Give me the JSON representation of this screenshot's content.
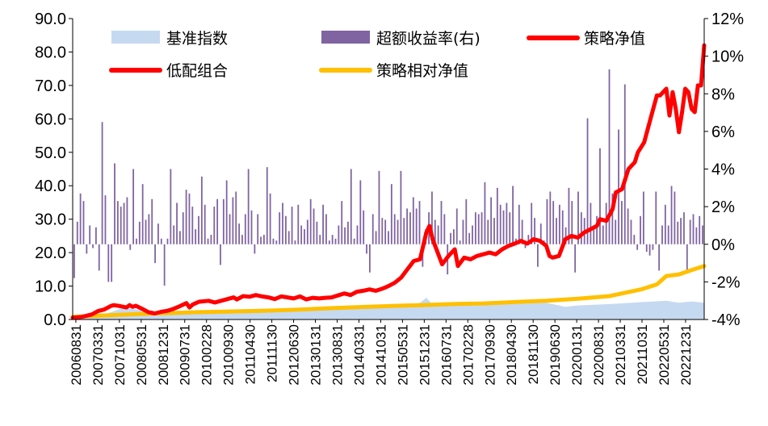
{
  "chart_data": {
    "type": "line",
    "legend": {
      "position": "top",
      "entries": [
        {
          "key": "benchmark",
          "label": "基准指数",
          "kind": "area",
          "color": "#c5d9f1"
        },
        {
          "key": "excess",
          "label": "超额收益率(右)",
          "kind": "bar",
          "color": "#8064a2"
        },
        {
          "key": "strategy",
          "label": "策略净值",
          "kind": "line",
          "color": "#ff0000"
        },
        {
          "key": "lowcombo",
          "label": "低配组合",
          "kind": "line",
          "color": "#ff0000"
        },
        {
          "key": "relative",
          "label": "策略相对净值",
          "kind": "line",
          "color": "#ffc000"
        }
      ]
    },
    "y_left": {
      "min": 0,
      "max": 90,
      "ticks": [
        "0.0",
        "10.0",
        "20.0",
        "30.0",
        "40.0",
        "50.0",
        "60.0",
        "70.0",
        "80.0",
        "90.0"
      ]
    },
    "y_right": {
      "min": -4,
      "max": 12,
      "ticks": [
        "-4%",
        "-2%",
        "0%",
        "2%",
        "4%",
        "6%",
        "8%",
        "10%",
        "12%"
      ]
    },
    "x_ticks": [
      "20060831",
      "20070331",
      "20071031",
      "20080531",
      "20081231",
      "20090731",
      "20100228",
      "20100930",
      "20110430",
      "20111130",
      "20120630",
      "20130131",
      "20130831",
      "20140331",
      "20141031",
      "20150531",
      "20151231",
      "20160731",
      "20170228",
      "20170930",
      "20180430",
      "20181130",
      "20190630",
      "20200131",
      "20200831",
      "20210331",
      "20211031",
      "20220531",
      "20221231"
    ],
    "x_range": [
      0,
      197
    ],
    "strategy_points": [
      [
        0,
        0.5
      ],
      [
        3,
        0.8
      ],
      [
        6,
        1.5
      ],
      [
        8,
        2.5
      ],
      [
        10,
        3.0
      ],
      [
        12,
        4.0
      ],
      [
        13,
        4.3
      ],
      [
        15,
        4.0
      ],
      [
        17,
        3.6
      ],
      [
        18,
        4.3
      ],
      [
        19,
        3.8
      ],
      [
        20,
        4.1
      ],
      [
        22,
        3.2
      ],
      [
        24,
        2.2
      ],
      [
        26,
        1.8
      ],
      [
        28,
        2.3
      ],
      [
        30,
        2.6
      ],
      [
        32,
        3.2
      ],
      [
        34,
        4.0
      ],
      [
        36,
        4.9
      ],
      [
        37,
        3.6
      ],
      [
        38,
        4.5
      ],
      [
        40,
        5.3
      ],
      [
        43,
        5.6
      ],
      [
        45,
        5.1
      ],
      [
        47,
        5.6
      ],
      [
        49,
        6.1
      ],
      [
        51,
        6.6
      ],
      [
        52,
        6.0
      ],
      [
        54,
        7.0
      ],
      [
        56,
        6.8
      ],
      [
        58,
        7.3
      ],
      [
        60,
        6.9
      ],
      [
        62,
        6.6
      ],
      [
        64,
        6.1
      ],
      [
        66,
        6.9
      ],
      [
        68,
        6.6
      ],
      [
        70,
        6.3
      ],
      [
        72,
        6.9
      ],
      [
        74,
        6.0
      ],
      [
        76,
        6.5
      ],
      [
        78,
        6.3
      ],
      [
        80,
        6.5
      ],
      [
        82,
        6.6
      ],
      [
        84,
        7.2
      ],
      [
        86,
        7.8
      ],
      [
        88,
        7.3
      ],
      [
        90,
        8.3
      ],
      [
        92,
        8.6
      ],
      [
        94,
        9.0
      ],
      [
        96,
        8.6
      ],
      [
        98,
        9.2
      ],
      [
        100,
        10.0
      ],
      [
        102,
        11.0
      ],
      [
        104,
        12.5
      ],
      [
        106,
        15.0
      ],
      [
        108,
        17.5
      ],
      [
        110,
        18.0
      ],
      [
        112,
        26.0
      ],
      [
        113,
        28.0
      ],
      [
        114,
        24.0
      ],
      [
        116,
        19.0
      ],
      [
        117,
        16.5
      ],
      [
        119,
        19.0
      ],
      [
        121,
        21.0
      ],
      [
        122,
        16.0
      ],
      [
        124,
        18.5
      ],
      [
        126,
        18.0
      ],
      [
        128,
        19.0
      ],
      [
        130,
        19.5
      ],
      [
        132,
        20.0
      ],
      [
        134,
        19.5
      ],
      [
        136,
        21.0
      ],
      [
        138,
        22.0
      ],
      [
        140,
        22.7
      ],
      [
        142,
        23.5
      ],
      [
        144,
        22.7
      ],
      [
        146,
        24.0
      ],
      [
        148,
        23.5
      ],
      [
        150,
        22.0
      ],
      [
        151,
        19.0
      ],
      [
        152,
        18.5
      ],
      [
        154,
        19.0
      ],
      [
        156,
        24.0
      ],
      [
        158,
        25.0
      ],
      [
        160,
        24.5
      ],
      [
        162,
        26.0
      ],
      [
        164,
        27.0
      ],
      [
        166,
        28.0
      ],
      [
        167,
        30.0
      ],
      [
        169,
        29.5
      ],
      [
        171,
        33.0
      ],
      [
        172,
        38.0
      ],
      [
        174,
        39.0
      ],
      [
        176,
        45.0
      ],
      [
        178,
        47.0
      ],
      [
        179,
        50.0
      ],
      [
        181,
        53.0
      ],
      [
        183,
        60.0
      ],
      [
        185,
        67.0
      ],
      [
        186,
        67.0
      ],
      [
        188,
        69.0
      ],
      [
        189,
        61.0
      ],
      [
        190,
        68.0
      ],
      [
        191,
        63.0
      ],
      [
        192,
        56.0
      ],
      [
        193,
        62.0
      ],
      [
        194,
        69.0
      ],
      [
        195,
        68.0
      ],
      [
        196,
        63.0
      ],
      [
        197,
        62.0
      ],
      [
        198,
        70.0
      ],
      [
        199,
        70.0
      ],
      [
        200,
        82.0
      ]
    ],
    "relative_points": [
      [
        0,
        0.8
      ],
      [
        10,
        1.2
      ],
      [
        20,
        1.6
      ],
      [
        30,
        1.9
      ],
      [
        40,
        2.2
      ],
      [
        50,
        2.4
      ],
      [
        60,
        2.6
      ],
      [
        70,
        2.9
      ],
      [
        80,
        3.3
      ],
      [
        90,
        3.7
      ],
      [
        100,
        4.0
      ],
      [
        110,
        4.3
      ],
      [
        120,
        4.6
      ],
      [
        130,
        4.8
      ],
      [
        140,
        5.2
      ],
      [
        150,
        5.6
      ],
      [
        160,
        6.2
      ],
      [
        170,
        7.0
      ],
      [
        175,
        8.0
      ],
      [
        180,
        9.0
      ],
      [
        185,
        10.5
      ],
      [
        188,
        13.0
      ],
      [
        192,
        13.5
      ],
      [
        196,
        14.8
      ],
      [
        200,
        16.0
      ]
    ],
    "benchmark_points": [
      [
        0,
        0.8
      ],
      [
        10,
        1.5
      ],
      [
        16,
        3.5
      ],
      [
        22,
        2.8
      ],
      [
        30,
        1.8
      ],
      [
        40,
        2.6
      ],
      [
        50,
        3.0
      ],
      [
        60,
        3.2
      ],
      [
        70,
        3.0
      ],
      [
        80,
        3.0
      ],
      [
        90,
        3.3
      ],
      [
        100,
        3.6
      ],
      [
        106,
        4.2
      ],
      [
        110,
        5.0
      ],
      [
        112,
        6.5
      ],
      [
        114,
        4.5
      ],
      [
        120,
        4.2
      ],
      [
        130,
        4.3
      ],
      [
        140,
        4.6
      ],
      [
        150,
        5.0
      ],
      [
        156,
        3.8
      ],
      [
        160,
        4.2
      ],
      [
        170,
        4.6
      ],
      [
        180,
        5.2
      ],
      [
        188,
        5.6
      ],
      [
        192,
        5.0
      ],
      [
        196,
        5.4
      ],
      [
        200,
        5.0
      ]
    ],
    "excess_values": [
      -1.8,
      1.2,
      2.7,
      2.3,
      -0.5,
      1.0,
      -0.2,
      0.9,
      -1.4,
      6.5,
      2.6,
      -2.0,
      -2.0,
      4.3,
      2.3,
      2.0,
      2.2,
      2.5,
      -0.3,
      4.0,
      0.3,
      1.2,
      3.2,
      1.3,
      1.6,
      2.4,
      -1.0,
      1.1,
      0.3,
      -2.2,
      0.3,
      4.0,
      1.0,
      2.2,
      0.7,
      1.7,
      2.9,
      2.7,
      2.0,
      0.8,
      1.5,
      3.6,
      2.1,
      0.3,
      0.5,
      2.0,
      2.4,
      -1.1,
      2.4,
      3.4,
      1.6,
      2.5,
      2.8,
      1.1,
      0.5,
      1.6,
      4.0,
      1.8,
      -0.5,
      1.6,
      0.4,
      0.5,
      4.1,
      2.7,
      0.3,
      0.2,
      1.7,
      2.2,
      1.5,
      0.7,
      2.0,
      0.2,
      2.1,
      1.0,
      0.8,
      1.3,
      2.4,
      1.9,
      1.2,
      0.5,
      2.1,
      1.6,
      0.2,
      0.5,
      0.3,
      1.0,
      2.3,
      0.9,
      1.2,
      4.0,
      0.3,
      1.0,
      3.4,
      1.8,
      -0.5,
      -1.5,
      1.6,
      0.7,
      3.9,
      1.4,
      1.3,
      0.7,
      3.2,
      1.6,
      1.3,
      3.9,
      1.4,
      1.9,
      1.7,
      2.5,
      1.9,
      2.3,
      -1.2,
      0.8,
      1.7,
      2.8,
      1.3,
      1.0,
      2.3,
      1.6,
      -1.6,
      0.6,
      0.8,
      1.9,
      0.2,
      1.3,
      2.4,
      0.6,
      1.0,
      1.7,
      1.6,
      1.7,
      3.3,
      1.3,
      2.5,
      1.4,
      3.0,
      2.1,
      1.8,
      2.2,
      1.7,
      3.1,
      0.3,
      2.1,
      1.3,
      -0.2,
      0.5,
      2.2,
      1.4,
      -1.2,
      1.1,
      0.2,
      2.4,
      2.8,
      2.3,
      1.4,
      2.1,
      1.8,
      0.9,
      3.0,
      2.3,
      -1.5,
      2.8,
      1.7,
      1.4,
      6.7,
      2.2,
      1.0,
      1.5,
      5.1,
      1.0,
      2.2,
      9.3,
      2.7,
      1.3,
      6.1,
      2.3,
      8.5,
      1.9,
      1.3,
      0.5,
      -0.3,
      1.5,
      2.8,
      -0.4,
      -0.6,
      -0.3,
      2.8,
      -1.4,
      1.0,
      2.1,
      1.0,
      3.1,
      2.8,
      1.2,
      1.4,
      1.7,
      -1.5,
      1.3,
      1.6,
      0.9,
      1.5,
      1.0
    ]
  }
}
